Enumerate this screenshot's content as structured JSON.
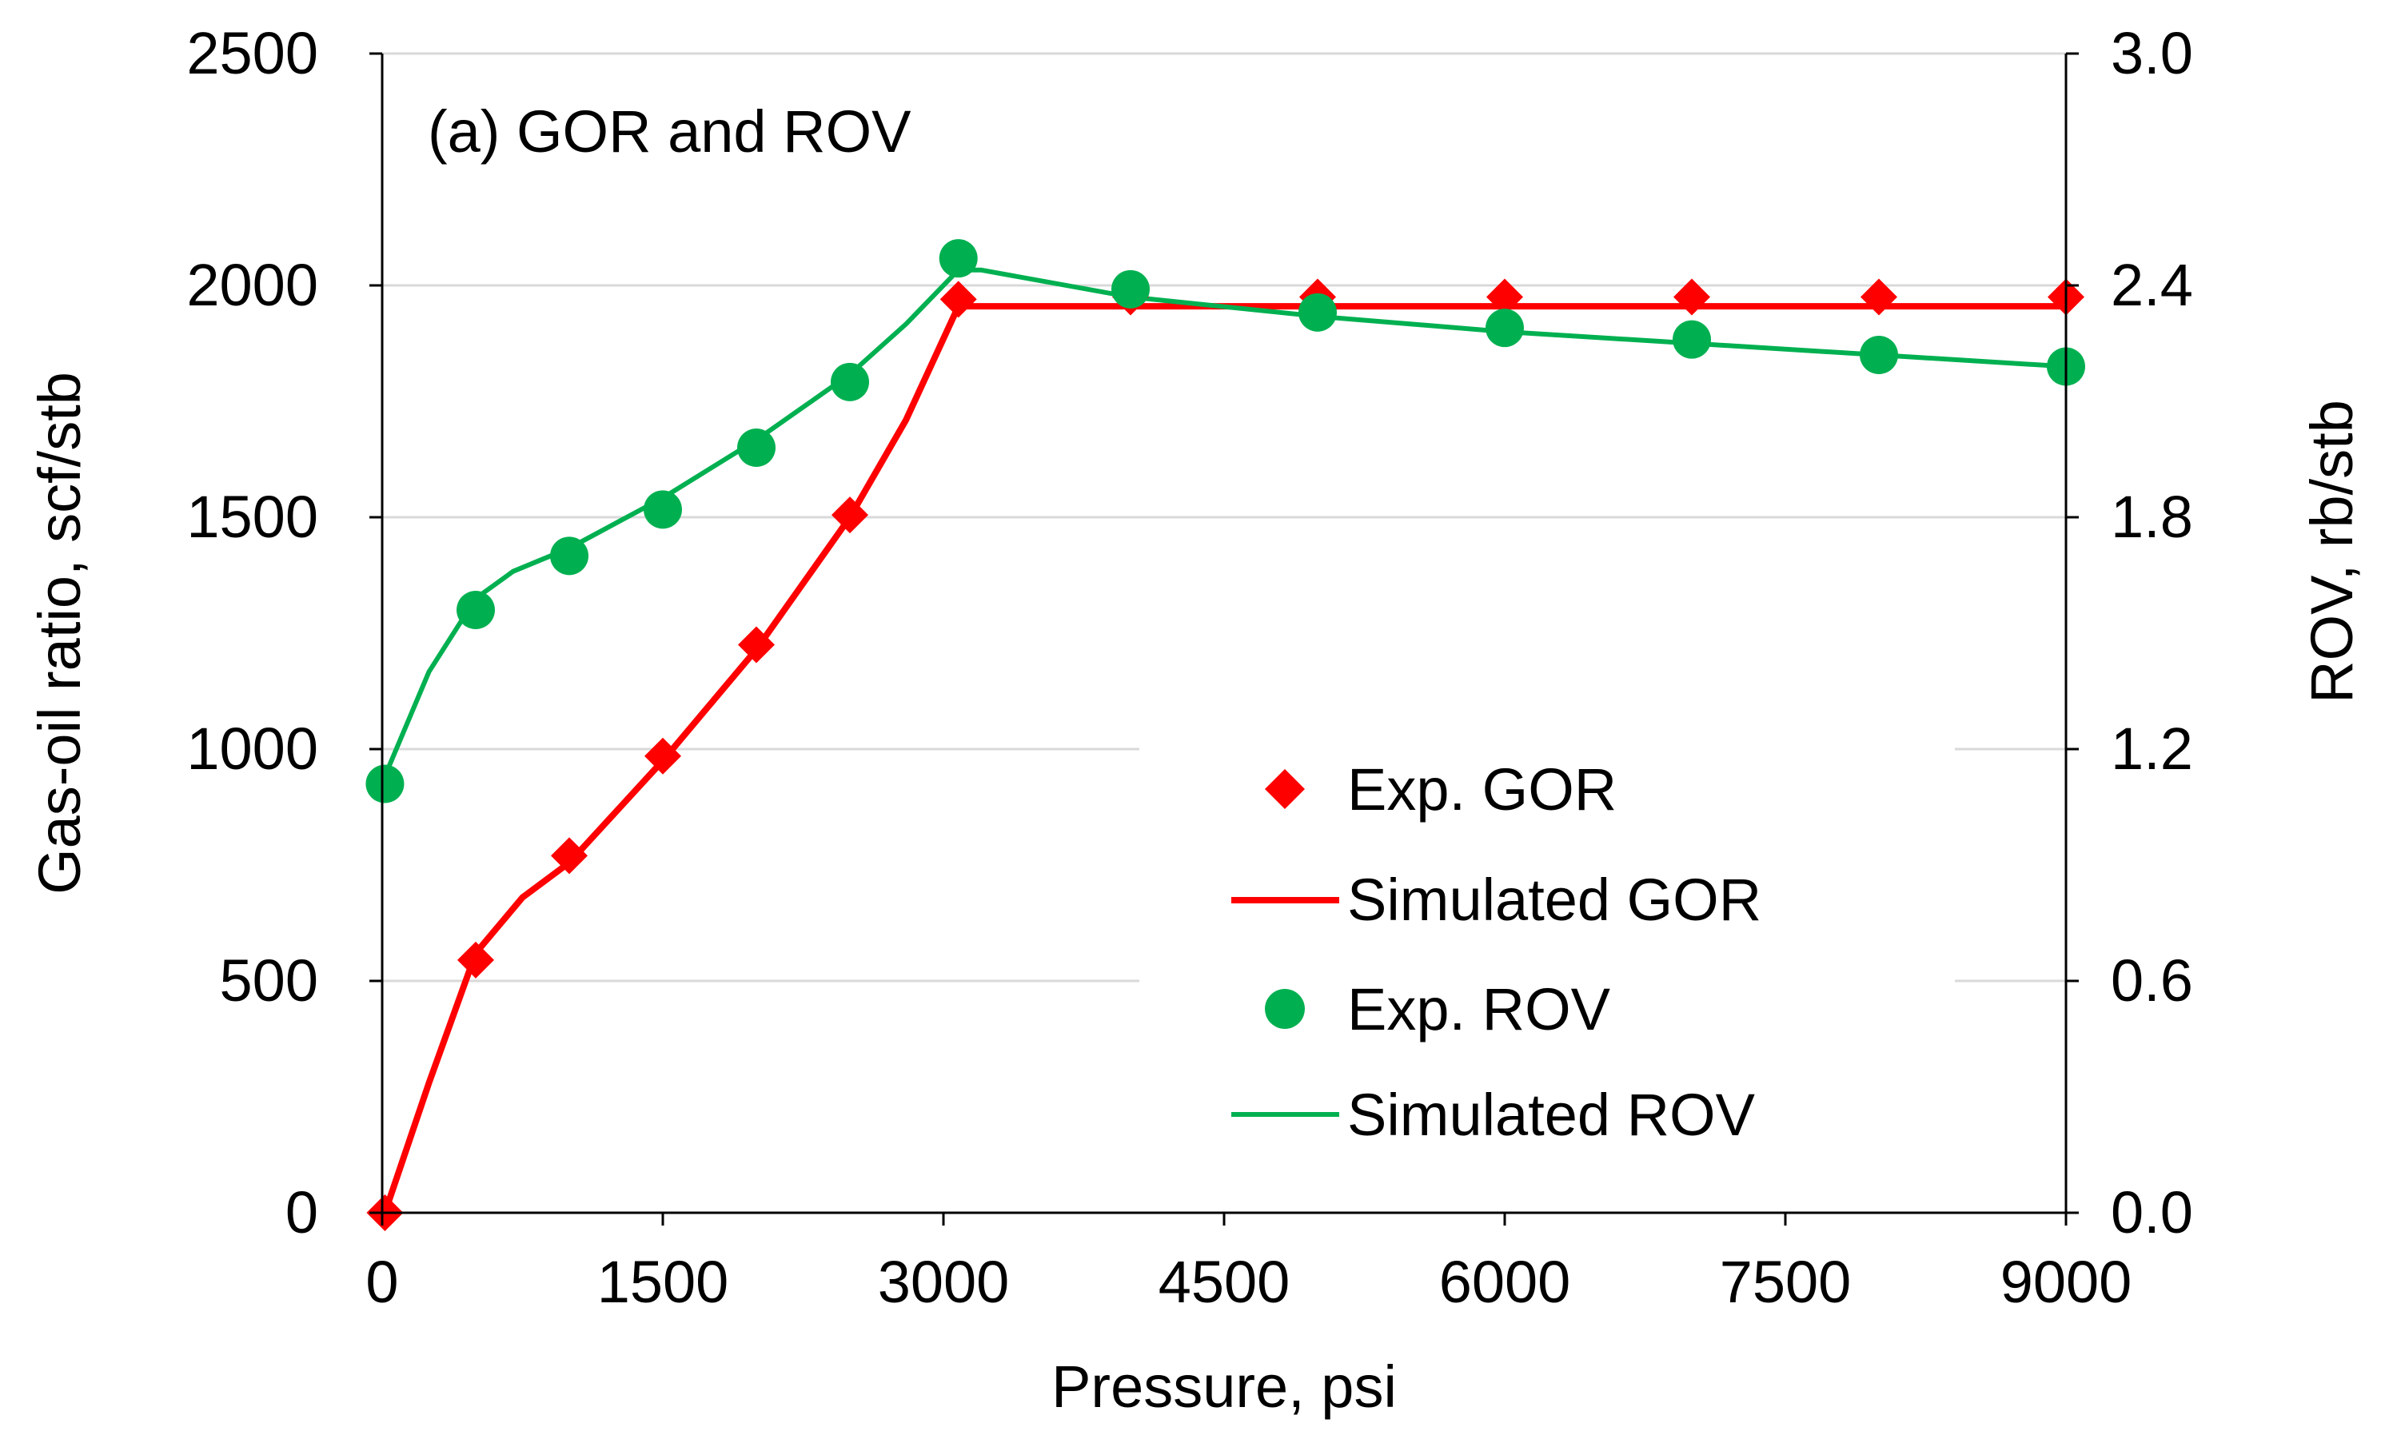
{
  "chart_data": {
    "type": "line",
    "title": "(a) GOR and ROV",
    "xlabel": "Pressure, psi",
    "ylabel": "Gas-oil ratio, scf/stb",
    "y2label": "ROV, rb/stb",
    "xlim": [
      0,
      9000
    ],
    "ylim": [
      0,
      2500
    ],
    "y2lim": [
      0.0,
      3.0
    ],
    "xticks": [
      "0",
      "1500",
      "3000",
      "4500",
      "6000",
      "7500",
      "9000"
    ],
    "yticks": [
      "0",
      "500",
      "1000",
      "1500",
      "2000",
      "2500"
    ],
    "y2ticks": [
      "0.0",
      "0.6",
      "1.2",
      "1.8",
      "2.4",
      "3.0"
    ],
    "grid": "horizontal",
    "legend_position": "bottom-right",
    "colors": {
      "gor": "#ff0000",
      "rov": "#00b050"
    },
    "series": [
      {
        "name": "Exp. GOR",
        "kind": "marker",
        "marker": "diamond",
        "axis": "left",
        "x": [
          14.7,
          500,
          1000,
          1500,
          2000,
          2500,
          3080,
          4000,
          5000,
          6000,
          7000,
          8000,
          9000
        ],
        "y": [
          0,
          545,
          770,
          985,
          1225,
          1505,
          1970,
          1975,
          1975,
          1975,
          1975,
          1975,
          1975
        ]
      },
      {
        "name": "Simulated GOR",
        "kind": "line",
        "axis": "left",
        "x": [
          14.7,
          250,
          500,
          750,
          1000,
          1500,
          2000,
          2500,
          2800,
          3080,
          3200,
          4000,
          5000,
          6000,
          7000,
          8000,
          9000
        ],
        "y": [
          0,
          280,
          560,
          680,
          755,
          975,
          1215,
          1500,
          1710,
          1955,
          1955,
          1955,
          1955,
          1955,
          1955,
          1955,
          1955
        ]
      },
      {
        "name": "Exp. ROV",
        "kind": "marker",
        "marker": "circle",
        "axis": "right",
        "x": [
          14.7,
          500,
          1000,
          1500,
          2000,
          2500,
          3080,
          4000,
          5000,
          6000,
          7000,
          8000,
          9000
        ],
        "y": [
          1.11,
          1.56,
          1.7,
          1.82,
          1.98,
          2.15,
          2.47,
          2.39,
          2.33,
          2.29,
          2.26,
          2.22,
          2.19
        ]
      },
      {
        "name": "Simulated ROV",
        "kind": "line",
        "axis": "right",
        "x": [
          14.7,
          250,
          500,
          700,
          1000,
          1500,
          2000,
          2500,
          2800,
          3080,
          3200,
          4000,
          5000,
          6000,
          7000,
          8000,
          9000
        ],
        "y": [
          1.13,
          1.4,
          1.59,
          1.66,
          1.72,
          1.85,
          2.0,
          2.17,
          2.3,
          2.44,
          2.44,
          2.37,
          2.32,
          2.28,
          2.25,
          2.22,
          2.19
        ]
      }
    ]
  }
}
